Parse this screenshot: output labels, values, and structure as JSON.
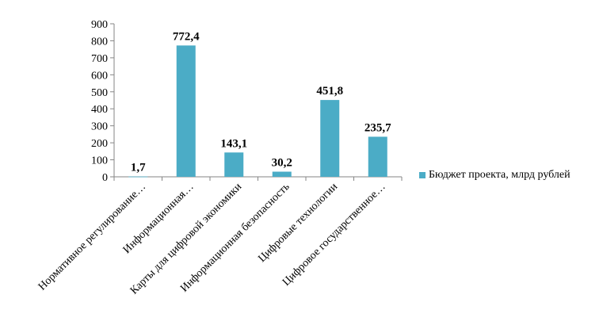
{
  "chart_data": {
    "type": "bar",
    "categories": [
      "Нормативное регулирование…",
      "Информационная…",
      "Карты для цифровой экономики",
      "Информационная безопасность",
      "Цифровые технологии",
      "Цифровое государственное…"
    ],
    "series": [
      {
        "name": "Бюджет проекта, млрд рублей",
        "values": [
          1.7,
          772.4,
          143.1,
          30.2,
          451.8,
          235.7
        ],
        "labels": [
          "1,7",
          "772,4",
          "143,1",
          "30,2",
          "451,8",
          "235,7"
        ],
        "color": "#4BACC6"
      }
    ],
    "ylim": [
      0,
      900
    ],
    "yticks": [
      0,
      100,
      200,
      300,
      400,
      500,
      600,
      700,
      800,
      900
    ],
    "grid": false,
    "legend_position": "right"
  }
}
